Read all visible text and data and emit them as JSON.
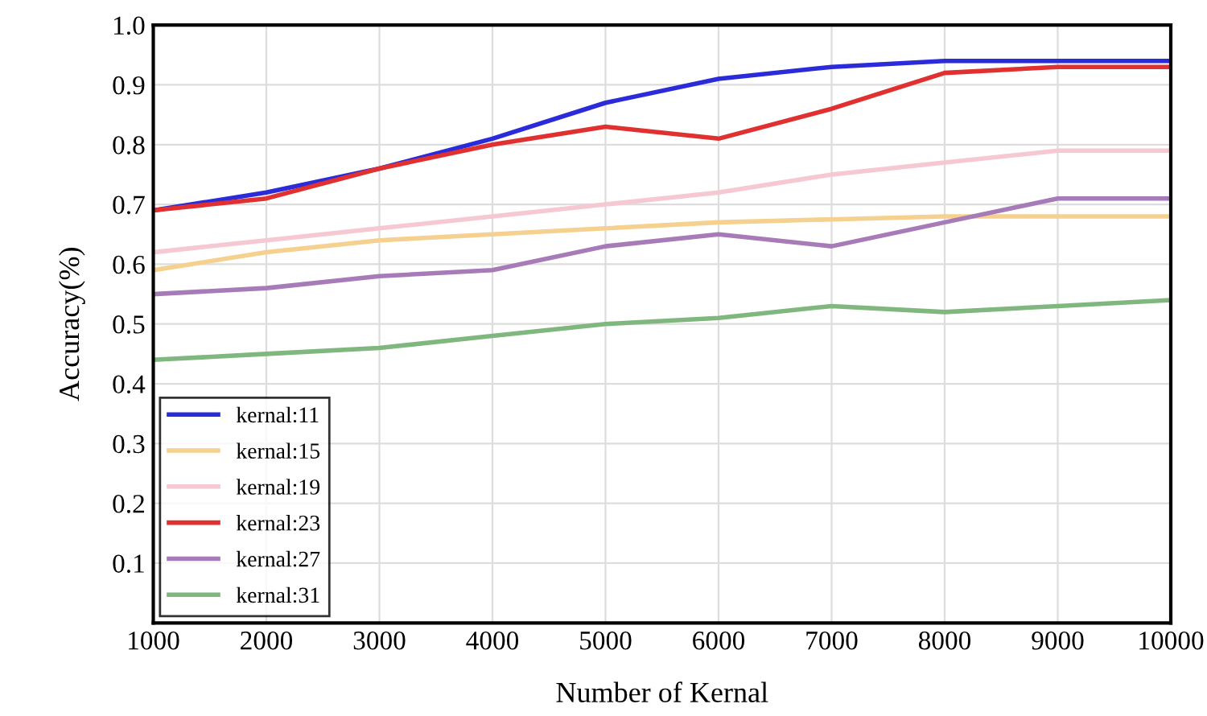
{
  "chart_data": {
    "type": "line",
    "xlabel": "Number of Kernal",
    "ylabel": "Accuracy(%)",
    "x": [
      1000,
      2000,
      3000,
      4000,
      5000,
      6000,
      7000,
      8000,
      9000,
      10000
    ],
    "series": [
      {
        "name": "kernal:11",
        "color": "#2b2bd9",
        "values": [
          0.69,
          0.72,
          0.76,
          0.81,
          0.87,
          0.91,
          0.93,
          0.94,
          0.94,
          0.94
        ]
      },
      {
        "name": "kernal:15",
        "color": "#f5d08f",
        "values": [
          0.59,
          0.62,
          0.64,
          0.65,
          0.66,
          0.67,
          0.675,
          0.68,
          0.68,
          0.68
        ]
      },
      {
        "name": "kernal:19",
        "color": "#f5c8d2",
        "values": [
          0.62,
          0.64,
          0.66,
          0.68,
          0.7,
          0.72,
          0.75,
          0.77,
          0.79,
          0.79
        ]
      },
      {
        "name": "kernal:23",
        "color": "#e03030",
        "values": [
          0.69,
          0.71,
          0.76,
          0.8,
          0.83,
          0.81,
          0.86,
          0.92,
          0.93,
          0.93
        ]
      },
      {
        "name": "kernal:27",
        "color": "#a77bb8",
        "values": [
          0.55,
          0.56,
          0.58,
          0.59,
          0.63,
          0.65,
          0.63,
          0.67,
          0.71,
          0.71
        ]
      },
      {
        "name": "kernal:31",
        "color": "#7fb77f",
        "values": [
          0.44,
          0.45,
          0.46,
          0.48,
          0.5,
          0.51,
          0.53,
          0.52,
          0.53,
          0.54
        ]
      }
    ],
    "xlim": [
      1000,
      10000
    ],
    "xticks": [
      1000,
      2000,
      3000,
      4000,
      5000,
      6000,
      7000,
      8000,
      9000,
      10000
    ],
    "ylim": [
      0,
      1.0
    ],
    "yticks": [
      {
        "value": 0,
        "label": null
      },
      0.1,
      0.2,
      0.3,
      0.4,
      0.5,
      0.6,
      0.7,
      0.8,
      0.9,
      {
        "value": 1.0,
        "label": "1.0"
      }
    ],
    "grid": true,
    "legend": "bottom left",
    "marker": "none",
    "line_style": "solid"
  }
}
